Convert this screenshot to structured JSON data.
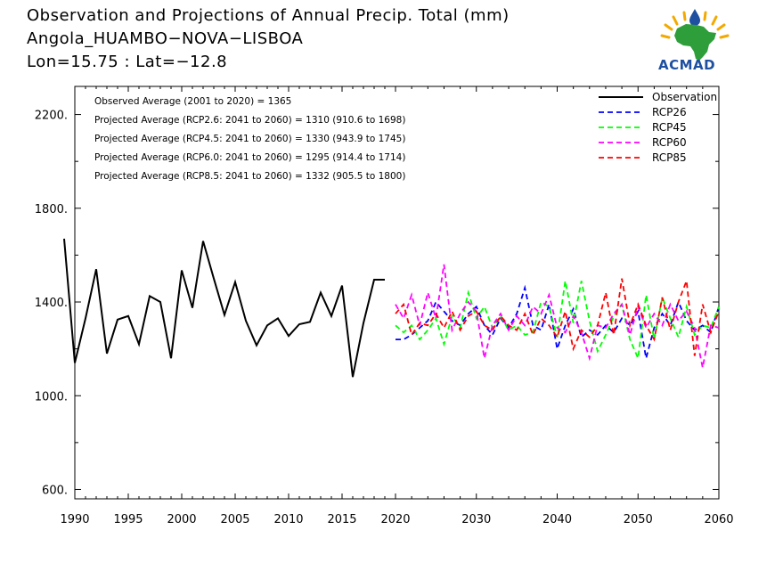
{
  "chart_data": {
    "type": "line",
    "title": "Observation and Projections of Annual Precip. Total (mm)",
    "subtitle_lines": [
      "Angola_HUAMBO−NOVA−LISBOA",
      "Lon=15.75 : Lat=−12.8"
    ],
    "xlim": [
      1990,
      2060
    ],
    "ylim": [
      560,
      2320
    ],
    "y_ticks": [
      600,
      1000,
      1400,
      1800,
      2200
    ],
    "y_tick_labels": [
      "600.",
      "1000.",
      "1400.",
      "1800.",
      "2200."
    ],
    "x_ticks_left": [
      1990,
      1995,
      2000,
      2005,
      2010,
      2015,
      2020
    ],
    "x_ticks_right": [
      2030,
      2040,
      2050,
      2060
    ],
    "annotations": [
      "Observed Average (2001 to 2020) = 1365",
      "Projected Average (RCP2.6: 2041 to 2060) = 1310 (910.6 to 1698)",
      "Projected Average (RCP4.5: 2041 to 2060) = 1330 (943.9 to 1745)",
      "Projected Average (RCP6.0: 2041 to 2060) = 1295 (914.4 to 1714)",
      "Projected Average (RCP8.5: 2041 to 2060) = 1332 (905.5 to 1800)"
    ],
    "legend_position": "top-right",
    "series": [
      {
        "name": "Observation",
        "color": "#000000",
        "style": "solid",
        "x": [
          1989,
          1990,
          1991,
          1992,
          1993,
          1994,
          1995,
          1996,
          1997,
          1998,
          1999,
          2000,
          2001,
          2002,
          2003,
          2004,
          2005,
          2006,
          2007,
          2008,
          2009,
          2010,
          2011,
          2012,
          2013,
          2014,
          2015,
          2016,
          2017,
          2018,
          2019
        ],
        "y": [
          1670,
          1140,
          1330,
          1540,
          1180,
          1325,
          1340,
          1220,
          1425,
          1400,
          1160,
          1535,
          1375,
          1660,
          1500,
          1345,
          1485,
          1320,
          1215,
          1300,
          1330,
          1255,
          1305,
          1315,
          1440,
          1340,
          1470,
          1080,
          1310,
          1495,
          1495
        ]
      },
      {
        "name": "RCP26",
        "color": "#0000ff",
        "style": "dashed",
        "x": [
          2020,
          2021,
          2022,
          2023,
          2024,
          2025,
          2026,
          2027,
          2028,
          2029,
          2030,
          2031,
          2032,
          2033,
          2034,
          2035,
          2036,
          2037,
          2038,
          2039,
          2040,
          2041,
          2042,
          2043,
          2044,
          2045,
          2046,
          2047,
          2048,
          2049,
          2050,
          2051,
          2052,
          2053,
          2054,
          2055,
          2056,
          2057,
          2058,
          2059,
          2060
        ],
        "y": [
          1240,
          1240,
          1260,
          1290,
          1320,
          1400,
          1360,
          1320,
          1300,
          1350,
          1380,
          1300,
          1260,
          1330,
          1290,
          1350,
          1460,
          1300,
          1280,
          1390,
          1200,
          1300,
          1370,
          1250,
          1280,
          1260,
          1300,
          1270,
          1330,
          1300,
          1360,
          1160,
          1290,
          1350,
          1300,
          1400,
          1320,
          1280,
          1300,
          1270,
          1380
        ]
      },
      {
        "name": "RCP45",
        "color": "#00ff00",
        "style": "dashed",
        "x": [
          2020,
          2021,
          2022,
          2023,
          2024,
          2025,
          2026,
          2027,
          2028,
          2029,
          2030,
          2031,
          2032,
          2033,
          2034,
          2035,
          2036,
          2037,
          2038,
          2039,
          2040,
          2041,
          2042,
          2043,
          2044,
          2045,
          2046,
          2047,
          2048,
          2049,
          2050,
          2051,
          2052,
          2053,
          2054,
          2055,
          2056,
          2057,
          2058,
          2059,
          2060
        ],
        "y": [
          1300,
          1270,
          1300,
          1240,
          1280,
          1330,
          1220,
          1340,
          1290,
          1440,
          1330,
          1380,
          1290,
          1340,
          1280,
          1300,
          1260,
          1270,
          1400,
          1380,
          1250,
          1490,
          1310,
          1490,
          1320,
          1190,
          1260,
          1340,
          1390,
          1240,
          1160,
          1430,
          1240,
          1420,
          1330,
          1250,
          1380,
          1260,
          1300,
          1290,
          1380
        ]
      },
      {
        "name": "RCP60",
        "color": "#ff00ff",
        "style": "dashed",
        "x": [
          2020,
          2021,
          2022,
          2023,
          2024,
          2025,
          2026,
          2027,
          2028,
          2029,
          2030,
          2031,
          2032,
          2033,
          2034,
          2035,
          2036,
          2037,
          2038,
          2039,
          2040,
          2041,
          2042,
          2043,
          2044,
          2045,
          2046,
          2047,
          2048,
          2049,
          2050,
          2051,
          2052,
          2053,
          2054,
          2055,
          2056,
          2057,
          2058,
          2059,
          2060
        ],
        "y": [
          1390,
          1330,
          1430,
          1300,
          1440,
          1330,
          1560,
          1280,
          1350,
          1400,
          1360,
          1160,
          1300,
          1350,
          1280,
          1340,
          1300,
          1380,
          1350,
          1430,
          1290,
          1270,
          1340,
          1270,
          1160,
          1300,
          1290,
          1350,
          1390,
          1260,
          1380,
          1290,
          1350,
          1300,
          1390,
          1320,
          1360,
          1290,
          1120,
          1300,
          1290
        ]
      },
      {
        "name": "RCP85",
        "color": "#ff0000",
        "style": "dashed",
        "x": [
          2020,
          2021,
          2022,
          2023,
          2024,
          2025,
          2026,
          2027,
          2028,
          2029,
          2030,
          2031,
          2032,
          2033,
          2034,
          2035,
          2036,
          2037,
          2038,
          2039,
          2040,
          2041,
          2042,
          2043,
          2044,
          2045,
          2046,
          2047,
          2048,
          2049,
          2050,
          2051,
          2052,
          2053,
          2054,
          2055,
          2056,
          2057,
          2058,
          2059,
          2060
        ],
        "y": [
          1350,
          1390,
          1260,
          1310,
          1300,
          1350,
          1290,
          1360,
          1280,
          1340,
          1360,
          1300,
          1280,
          1340,
          1300,
          1280,
          1350,
          1260,
          1330,
          1300,
          1250,
          1360,
          1200,
          1280,
          1250,
          1300,
          1440,
          1260,
          1500,
          1300,
          1390,
          1300,
          1240,
          1420,
          1280,
          1400,
          1490,
          1170,
          1390,
          1270,
          1360
        ]
      }
    ]
  },
  "branding": {
    "logo_text": "ACMAD",
    "colors": {
      "africa": "#2e9e3a",
      "rays": "#f2a900",
      "drop": "#1e4fa0"
    }
  }
}
